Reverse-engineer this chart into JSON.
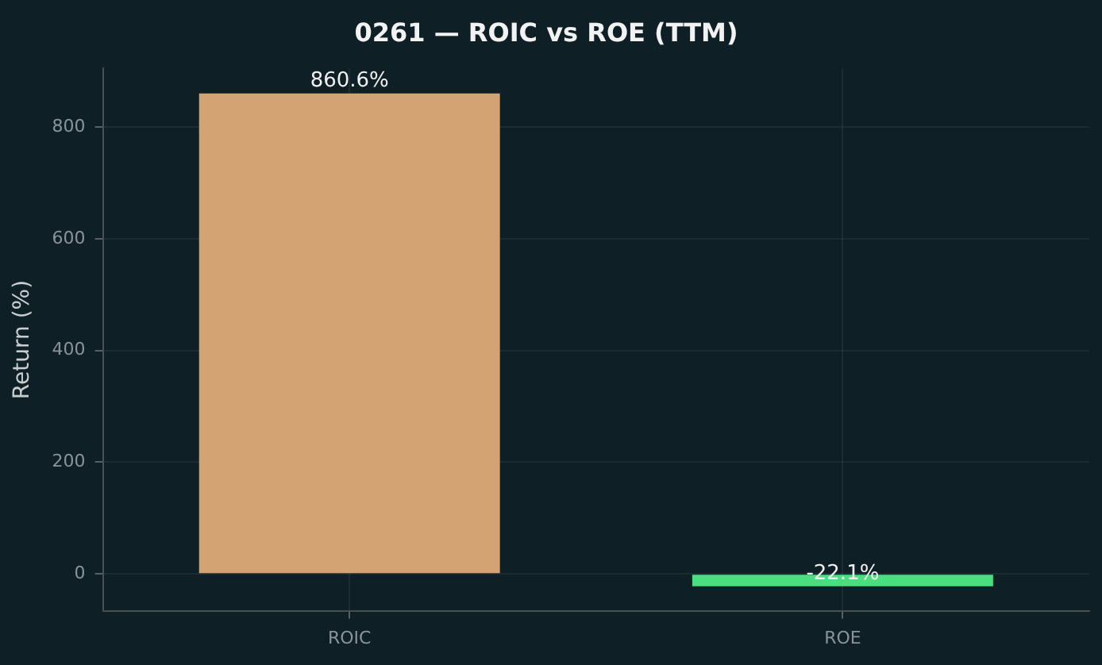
{
  "chart_data": {
    "type": "bar",
    "title": "0261 — ROIC vs ROE (TTM)",
    "ylabel": "Return (%)",
    "categories": [
      "ROIC",
      "ROE"
    ],
    "values": [
      860.6,
      -22.1
    ],
    "colors": [
      "#d4a373",
      "#4ade80"
    ],
    "value_labels": [
      "860.6%",
      "-22.1%"
    ],
    "ylim": [
      -66,
      905
    ],
    "yticks": [
      0,
      200,
      400,
      600,
      800
    ],
    "grid": true,
    "legend": false
  }
}
